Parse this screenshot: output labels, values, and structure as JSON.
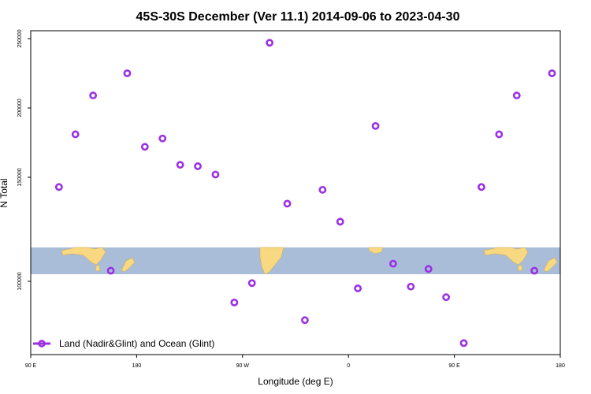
{
  "chart_data": {
    "type": "scatter",
    "title": "45S-30S December (Ver 11.1)   2014-09-06 to 2023-04-30",
    "xlabel": "Longitude (deg E)",
    "ylabel": "N Total",
    "x_ticks": [
      {
        "value": 90,
        "label": "90 E"
      },
      {
        "value": 180,
        "label": "180"
      },
      {
        "value": 270,
        "label": "90 W"
      },
      {
        "value": 360,
        "label": "0"
      },
      {
        "value": 450,
        "label": "90 E"
      },
      {
        "value": 540,
        "label": "180"
      }
    ],
    "y_ticks": [
      {
        "value": 100000,
        "label": "100000"
      },
      {
        "value": 150000,
        "label": "150000"
      },
      {
        "value": 200000,
        "label": "200000"
      },
      {
        "value": 250000,
        "label": "250000"
      }
    ],
    "xlim": [
      90,
      540
    ],
    "y_axis": {
      "scale": "piecewise",
      "note": "upper and lower scales split by map strip"
    },
    "legend": {
      "position": "bottom-left",
      "entries": [
        {
          "label": "Land (Nadir&Glint) and Ocean (Glint)",
          "color": "#9b30e6",
          "marker": "open-circle"
        }
      ]
    },
    "series": [
      {
        "color": "#9b30e6",
        "points": [
          {
            "x": 114,
            "y": 143000
          },
          {
            "x": 128,
            "y": 181000
          },
          {
            "x": 143,
            "y": 209000
          },
          {
            "x": 158,
            "y": 106000
          },
          {
            "x": 172,
            "y": 225000
          },
          {
            "x": 187,
            "y": 172000
          },
          {
            "x": 202,
            "y": 178000
          },
          {
            "x": 217,
            "y": 159000
          },
          {
            "x": 232,
            "y": 158000
          },
          {
            "x": 247,
            "y": 152000
          },
          {
            "x": 263,
            "y": 88000
          },
          {
            "x": 278,
            "y": 99000
          },
          {
            "x": 293,
            "y": 247000
          },
          {
            "x": 308,
            "y": 131000
          },
          {
            "x": 323,
            "y": 78000
          },
          {
            "x": 338,
            "y": 141000
          },
          {
            "x": 353,
            "y": 118000
          },
          {
            "x": 368,
            "y": 96000
          },
          {
            "x": 383,
            "y": 187000
          },
          {
            "x": 398,
            "y": 110000
          },
          {
            "x": 413,
            "y": 97000
          },
          {
            "x": 428,
            "y": 107000
          },
          {
            "x": 443,
            "y": 91000
          },
          {
            "x": 458,
            "y": 65000
          },
          {
            "x": 473,
            "y": 143000
          },
          {
            "x": 488,
            "y": 181000
          },
          {
            "x": 503,
            "y": 209000
          },
          {
            "x": 518,
            "y": 106000
          },
          {
            "x": 533,
            "y": 225000
          }
        ]
      }
    ],
    "colors": {
      "marker": "#9b30e6",
      "ocean": "#a9bcd8",
      "land": "#f8d880"
    }
  }
}
